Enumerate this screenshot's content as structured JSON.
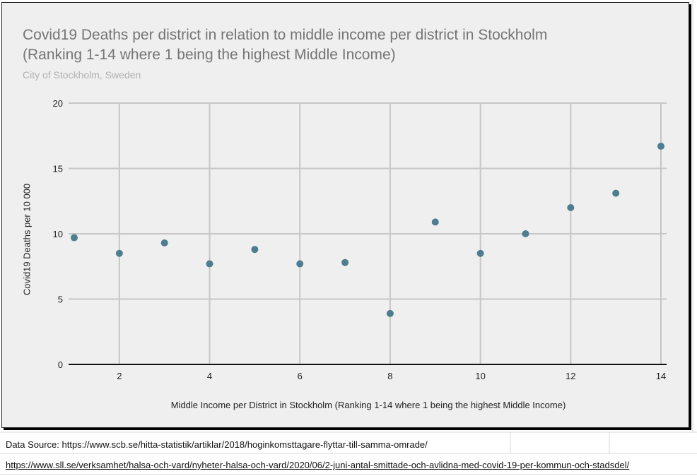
{
  "chart_data": {
    "type": "scatter",
    "title_line1": "Covid19 Deaths per district in relation to middle income per district in Stockholm",
    "title_line2": "(Ranking 1-14 where 1 being the highest Middle Income)",
    "subtitle": "City of Stockholm, Sweden",
    "xlabel": "Middle Income per District in Stockholm (Ranking 1-14 where 1 being the highest Middle Income)",
    "ylabel": "Covid19 Deaths per 10 000",
    "xlim": [
      1,
      14
    ],
    "ylim": [
      0,
      20
    ],
    "x_ticks": [
      2,
      4,
      6,
      8,
      10,
      12,
      14
    ],
    "y_ticks": [
      0,
      5,
      10,
      15,
      20
    ],
    "grid": true,
    "point_color": "#4d7e8f",
    "x": [
      1,
      2,
      3,
      4,
      5,
      6,
      7,
      8,
      9,
      10,
      11,
      12,
      13,
      14
    ],
    "y": [
      9.7,
      8.5,
      9.3,
      7.7,
      8.8,
      7.7,
      7.8,
      3.9,
      10.9,
      8.5,
      10.0,
      12.0,
      13.1,
      16.7
    ]
  },
  "sources": {
    "line1": "Data Source: https://www.scb.se/hitta-statistik/artiklar/2018/hoginkomsttagare-flyttar-till-samma-omrade/",
    "line2": "https://www.sll.se/verksamhet/halsa-och-vard/nyheter-halsa-och-vard/2020/06/2-juni-antal-smittade-och-avlidna-med-covid-19-per-kommun-och-stadsdel/"
  }
}
